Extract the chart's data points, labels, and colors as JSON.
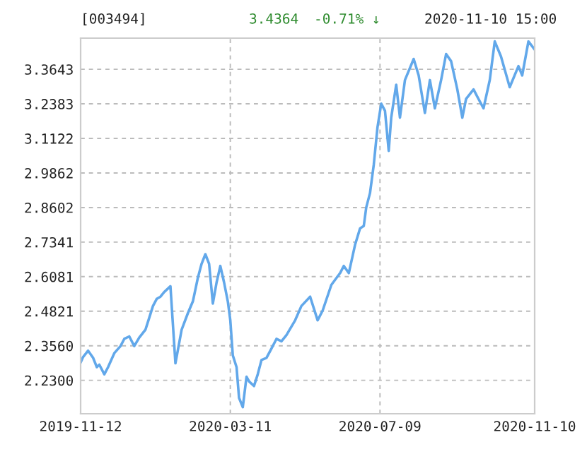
{
  "chart_data": {
    "type": "line",
    "annotations": [
      "[003494]",
      "3.4364",
      "-0.71% ↓",
      "2020-11-10 15:00"
    ],
    "x": [
      "2019-11-12",
      "2019-11-14",
      "2019-11-18",
      "2019-11-22",
      "2019-11-25",
      "2019-11-27",
      "2019-12-01",
      "2019-12-04",
      "2019-12-09",
      "2019-12-14",
      "2019-12-17",
      "2019-12-21",
      "2019-12-25",
      "2019-12-29",
      "2020-01-03",
      "2020-01-06",
      "2020-01-09",
      "2020-01-12",
      "2020-01-15",
      "2020-01-18",
      "2020-01-23",
      "2020-01-27",
      "2020-02-01",
      "2020-02-06",
      "2020-02-10",
      "2020-02-14",
      "2020-02-17",
      "2020-02-20",
      "2020-02-23",
      "2020-02-26",
      "2020-02-29",
      "2020-03-03",
      "2020-03-06",
      "2020-03-09",
      "2020-03-11",
      "2020-03-13",
      "2020-03-16",
      "2020-03-18",
      "2020-03-21",
      "2020-03-24",
      "2020-03-26",
      "2020-03-30",
      "2020-04-02",
      "2020-04-05",
      "2020-04-09",
      "2020-04-13",
      "2020-04-17",
      "2020-04-21",
      "2020-04-25",
      "2020-05-02",
      "2020-05-07",
      "2020-05-14",
      "2020-05-20",
      "2020-05-24",
      "2020-05-31",
      "2020-06-07",
      "2020-06-10",
      "2020-06-14",
      "2020-06-19",
      "2020-06-23",
      "2020-06-26",
      "2020-06-28",
      "2020-07-01",
      "2020-07-04",
      "2020-07-07",
      "2020-07-10",
      "2020-07-13",
      "2020-07-16",
      "2020-07-18",
      "2020-07-22",
      "2020-07-25",
      "2020-07-29",
      "2020-08-05",
      "2020-08-09",
      "2020-08-14",
      "2020-08-18",
      "2020-08-22",
      "2020-08-27",
      "2020-08-31",
      "2020-09-04",
      "2020-09-09",
      "2020-09-13",
      "2020-09-16",
      "2020-09-22",
      "2020-09-26",
      "2020-09-30",
      "2020-10-05",
      "2020-10-09",
      "2020-10-14",
      "2020-10-21",
      "2020-10-28",
      "2020-10-31",
      "2020-11-05",
      "2020-11-10"
    ],
    "series": [
      {
        "color": "#62a8ea",
        "values": [
          2.295,
          2.315,
          2.338,
          2.312,
          2.278,
          2.287,
          2.252,
          2.278,
          2.329,
          2.355,
          2.381,
          2.39,
          2.355,
          2.386,
          2.415,
          2.458,
          2.501,
          2.527,
          2.535,
          2.552,
          2.573,
          2.292,
          2.415,
          2.475,
          2.518,
          2.604,
          2.655,
          2.69,
          2.655,
          2.51,
          2.587,
          2.647,
          2.587,
          2.518,
          2.449,
          2.321,
          2.278,
          2.166,
          2.132,
          2.243,
          2.226,
          2.209,
          2.252,
          2.304,
          2.312,
          2.346,
          2.381,
          2.372,
          2.395,
          2.449,
          2.501,
          2.535,
          2.449,
          2.484,
          2.578,
          2.621,
          2.647,
          2.621,
          2.724,
          2.784,
          2.793,
          2.861,
          2.913,
          3.016,
          3.153,
          3.239,
          3.213,
          3.067,
          3.188,
          3.308,
          3.188,
          3.325,
          3.402,
          3.342,
          3.205,
          3.325,
          3.222,
          3.325,
          3.42,
          3.394,
          3.291,
          3.188,
          3.256,
          3.291,
          3.256,
          3.222,
          3.325,
          3.466,
          3.411,
          3.299,
          3.376,
          3.342,
          3.466,
          3.436
        ]
      }
    ],
    "xlim": [
      "2019-11-12",
      "2020-11-10"
    ],
    "xticks": [
      "2019-11-12",
      "2020-03-11",
      "2020-07-09",
      "2020-11-10"
    ],
    "ylim": [
      2.108,
      3.478
    ],
    "yticks": [
      {
        "value": 2.23,
        "label": "2.2300"
      },
      {
        "value": 2.356,
        "label": "2.3560"
      },
      2.4821,
      2.6081,
      2.7341,
      2.8602,
      2.9862,
      3.1122,
      3.2383,
      3.3643
    ],
    "grid": true,
    "legend": false,
    "marker": "none",
    "line_style": "solid"
  }
}
